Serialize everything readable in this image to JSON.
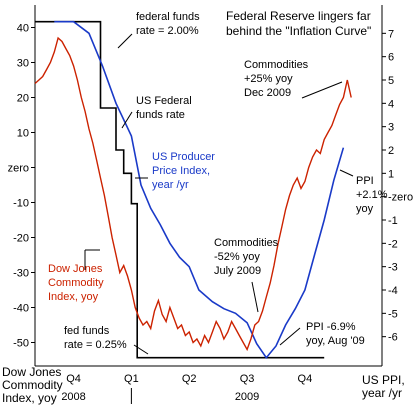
{
  "title_lines": [
    "Federal Reserve lingers far",
    "behind the \"Inflation Curve\""
  ],
  "colors": {
    "dow_jones_commodity": "#cc2200",
    "us_ppi": "#1a3ac8",
    "fed_funds": "#000000",
    "arrow": "#000000",
    "background": "#ffffff"
  },
  "chart_data": {
    "type": "line",
    "left_axis": {
      "range": [
        -55,
        45
      ],
      "ticks": [
        {
          "value": 40,
          "label": "40"
        },
        {
          "value": 30,
          "label": "30"
        },
        {
          "value": 20,
          "label": "20"
        },
        {
          "value": 10,
          "label": "10"
        },
        {
          "value": 0,
          "label": "zero"
        },
        {
          "value": -10,
          "label": "-10"
        },
        {
          "value": -20,
          "label": "-20"
        },
        {
          "value": -30,
          "label": "-30"
        },
        {
          "value": -40,
          "label": "-40"
        },
        {
          "value": -50,
          "label": "-50"
        }
      ],
      "label_lines": [
        "Dow Jones",
        "Commodity",
        "Index, yoy"
      ]
    },
    "right_axis": {
      "range": [
        -7,
        8
      ],
      "ticks": [
        {
          "value": 7,
          "label": "7"
        },
        {
          "value": 6,
          "label": "6"
        },
        {
          "value": 5,
          "label": "5"
        },
        {
          "value": 4,
          "label": "4"
        },
        {
          "value": 3,
          "label": "3"
        },
        {
          "value": 2,
          "label": "2"
        },
        {
          "value": 1,
          "label": "1"
        },
        {
          "value": 0,
          "label": "-zero"
        },
        {
          "value": -1,
          "label": "-1"
        },
        {
          "value": -2,
          "label": "-2"
        },
        {
          "value": -3,
          "label": "-3"
        },
        {
          "value": -4,
          "label": "-4"
        },
        {
          "value": -5,
          "label": "-5"
        },
        {
          "value": -6,
          "label": "-6"
        }
      ],
      "label_lines": [
        "US PPI,",
        "year /yr"
      ]
    },
    "x_axis": {
      "range": [
        0,
        18
      ],
      "quarter_labels": [
        {
          "x": 2,
          "label": "Q4"
        },
        {
          "x": 5,
          "label": "Q1"
        },
        {
          "x": 8,
          "label": "Q2"
        },
        {
          "x": 11,
          "label": "Q3"
        },
        {
          "x": 14,
          "label": "Q4"
        }
      ],
      "year_labels": [
        {
          "x": 2,
          "label": "2008"
        },
        {
          "x": 11,
          "label": "2009"
        }
      ],
      "year_divider_x": 5
    },
    "series": [
      {
        "name": "Dow Jones Commodity Index, yoy",
        "axis": "left",
        "points": [
          [
            0,
            24
          ],
          [
            0.2,
            25
          ],
          [
            0.4,
            26
          ],
          [
            0.6,
            28
          ],
          [
            0.8,
            30
          ],
          [
            1.0,
            33
          ],
          [
            1.2,
            37
          ],
          [
            1.4,
            36
          ],
          [
            1.6,
            34
          ],
          [
            1.8,
            32
          ],
          [
            2.0,
            29
          ],
          [
            2.2,
            25
          ],
          [
            2.4,
            20
          ],
          [
            2.6,
            16
          ],
          [
            2.8,
            11
          ],
          [
            3.0,
            7
          ],
          [
            3.2,
            2
          ],
          [
            3.4,
            -3
          ],
          [
            3.6,
            -8
          ],
          [
            3.8,
            -14
          ],
          [
            4.0,
            -20
          ],
          [
            4.2,
            -25
          ],
          [
            4.4,
            -30
          ],
          [
            4.6,
            -28
          ],
          [
            4.8,
            -31
          ],
          [
            5.0,
            -35
          ],
          [
            5.2,
            -40
          ],
          [
            5.4,
            -43
          ],
          [
            5.6,
            -45
          ],
          [
            5.8,
            -44
          ],
          [
            6.0,
            -46
          ],
          [
            6.2,
            -41
          ],
          [
            6.4,
            -38
          ],
          [
            6.6,
            -42
          ],
          [
            6.8,
            -44
          ],
          [
            7.0,
            -40
          ],
          [
            7.2,
            -43
          ],
          [
            7.4,
            -46
          ],
          [
            7.6,
            -45
          ],
          [
            7.8,
            -48
          ],
          [
            8.0,
            -47
          ],
          [
            8.2,
            -50
          ],
          [
            8.4,
            -49
          ],
          [
            8.6,
            -51
          ],
          [
            8.8,
            -48
          ],
          [
            9.0,
            -50
          ],
          [
            9.2,
            -47
          ],
          [
            9.4,
            -44
          ],
          [
            9.6,
            -46
          ],
          [
            9.8,
            -49
          ],
          [
            10.0,
            -47
          ],
          [
            10.2,
            -44
          ],
          [
            10.4,
            -46
          ],
          [
            10.6,
            -48
          ],
          [
            10.8,
            -50
          ],
          [
            11.0,
            -52
          ],
          [
            11.2,
            -49
          ],
          [
            11.4,
            -45
          ],
          [
            11.6,
            -44
          ],
          [
            11.8,
            -41
          ],
          [
            12.0,
            -37
          ],
          [
            12.2,
            -33
          ],
          [
            12.4,
            -28
          ],
          [
            12.6,
            -22
          ],
          [
            12.8,
            -17
          ],
          [
            13.0,
            -12
          ],
          [
            13.2,
            -8
          ],
          [
            13.4,
            -5
          ],
          [
            13.6,
            -3
          ],
          [
            13.8,
            -6
          ],
          [
            14.0,
            -4
          ],
          [
            14.2,
            0
          ],
          [
            14.4,
            3
          ],
          [
            14.6,
            5
          ],
          [
            14.8,
            4
          ],
          [
            15.0,
            8
          ],
          [
            15.2,
            10
          ],
          [
            15.4,
            12
          ],
          [
            15.6,
            15
          ],
          [
            15.8,
            18
          ],
          [
            16.0,
            20
          ],
          [
            16.2,
            25
          ],
          [
            16.4,
            20
          ]
        ]
      },
      {
        "name": "US Producer Price Index, year /yr",
        "axis": "right",
        "points": [
          [
            1.0,
            7.5
          ],
          [
            2.0,
            7.5
          ],
          [
            2.8,
            7.0
          ],
          [
            3.5,
            5.6
          ],
          [
            4.2,
            4.0
          ],
          [
            5.0,
            2.6
          ],
          [
            5.5,
            0.5
          ],
          [
            6.0,
            -0.5
          ],
          [
            6.5,
            -1.2
          ],
          [
            7.0,
            -2.0
          ],
          [
            7.5,
            -2.6
          ],
          [
            8.0,
            -3.0
          ],
          [
            8.5,
            -4.0
          ],
          [
            9.2,
            -4.5
          ],
          [
            9.8,
            -4.8
          ],
          [
            10.4,
            -5.0
          ],
          [
            11.0,
            -5.4
          ],
          [
            11.5,
            -6.3
          ],
          [
            12.0,
            -6.9
          ],
          [
            12.5,
            -6.4
          ],
          [
            13.0,
            -5.5
          ],
          [
            13.5,
            -4.8
          ],
          [
            14.0,
            -4.0
          ],
          [
            14.5,
            -2.5
          ],
          [
            15.0,
            -1.0
          ],
          [
            15.5,
            0.7
          ],
          [
            16.0,
            2.1
          ]
        ]
      },
      {
        "name": "federal funds rate",
        "axis": "right",
        "points": [
          [
            0,
            7.5
          ],
          [
            3.4,
            7.5
          ],
          [
            3.4,
            3.8
          ],
          [
            4.2,
            3.8
          ],
          [
            4.2,
            2.0
          ],
          [
            4.6,
            2.0
          ],
          [
            4.6,
            1.0
          ],
          [
            5.0,
            1.0
          ],
          [
            5.0,
            -0.3
          ],
          [
            5.3,
            -0.3
          ],
          [
            5.3,
            -6.9
          ],
          [
            15.0,
            -6.9
          ]
        ]
      }
    ],
    "annotations": [
      {
        "id": "fed-funds-2pct",
        "lines": [
          "federal funds",
          "rate = 2.00%"
        ],
        "color": "#000000"
      },
      {
        "id": "us-fed-funds-rate",
        "lines": [
          "US Federal",
          "funds rate"
        ],
        "color": "#000000"
      },
      {
        "id": "us-ppi",
        "lines": [
          "US Producer",
          "Price Index,",
          "year /yr"
        ],
        "color": "#1a3ac8"
      },
      {
        "id": "dow-jones",
        "lines": [
          "Dow Jones",
          "Commodity",
          "Index, yoy"
        ],
        "color": "#cc2200"
      },
      {
        "id": "commod-july",
        "lines": [
          "Commodities",
          "-52% yoy",
          "July 2009"
        ],
        "color": "#000000"
      },
      {
        "id": "fed-funds-025",
        "lines": [
          "fed funds",
          "rate = 0.25%"
        ],
        "color": "#000000"
      },
      {
        "id": "ppi-aug",
        "lines": [
          "PPI -6.9%",
          "yoy, Aug '09"
        ],
        "color": "#000000"
      },
      {
        "id": "commod-dec",
        "lines": [
          "Commodities",
          "+25% yoy",
          "Dec 2009"
        ],
        "color": "#000000"
      },
      {
        "id": "ppi-plus",
        "lines": [
          "PPI",
          "+2.1%",
          "yoy"
        ],
        "color": "#000000"
      }
    ]
  }
}
